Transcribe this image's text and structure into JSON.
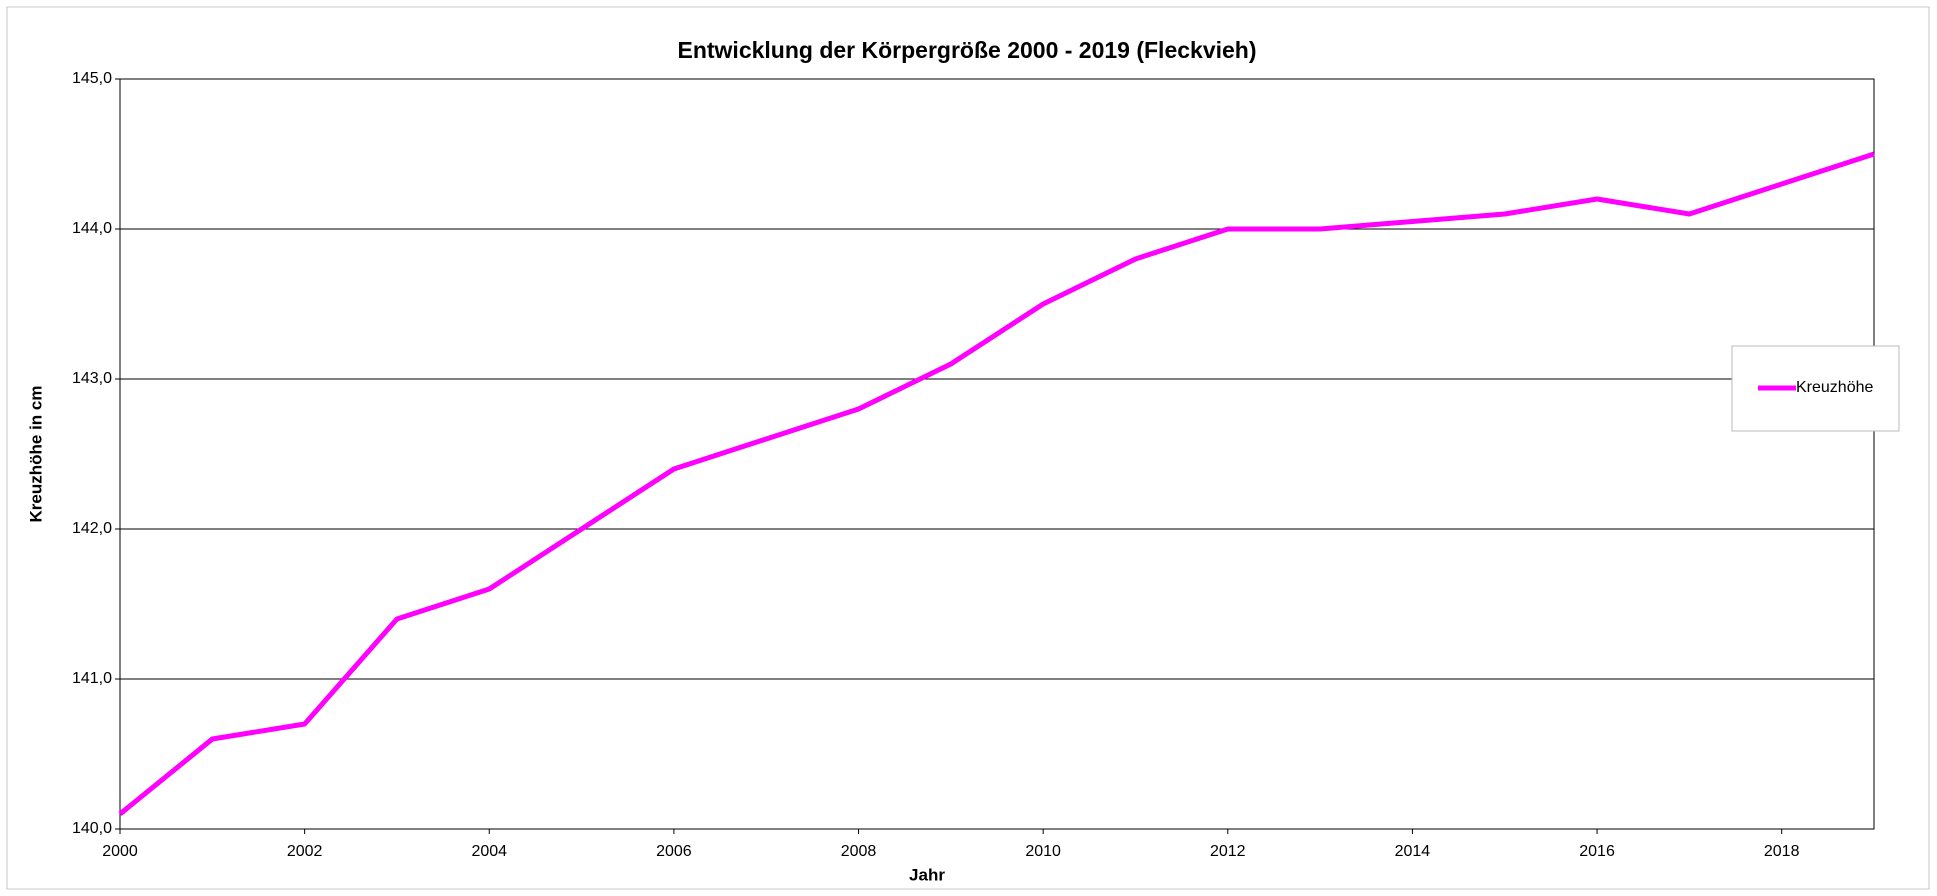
{
  "chart_data": {
    "type": "line",
    "title": "Entwicklung der Körpergröße 2000 - 2019  (Fleckvieh)",
    "x_label": "Jahr",
    "y_label": "Kreuzhöhe in cm",
    "x": [
      2000,
      2001,
      2002,
      2003,
      2004,
      2005,
      2006,
      2007,
      2008,
      2009,
      2010,
      2011,
      2012,
      2013,
      2014,
      2015,
      2016,
      2017,
      2018,
      2019
    ],
    "series": [
      {
        "name": "Kreuzhöhe",
        "color": "#ff00ff",
        "values": [
          140.1,
          140.6,
          140.7,
          141.4,
          141.6,
          142.0,
          142.4,
          142.6,
          142.8,
          143.1,
          143.5,
          143.8,
          144.0,
          144.0,
          144.05,
          144.1,
          144.2,
          144.1,
          144.3,
          144.5
        ]
      }
    ],
    "xlim": [
      2000,
      2019
    ],
    "xticks": [
      2000,
      2002,
      2004,
      2006,
      2008,
      2010,
      2012,
      2014,
      2016,
      2018
    ],
    "ylim": [
      140,
      145
    ],
    "yticks": [
      {
        "value": 140,
        "label": "140,0"
      },
      {
        "value": 141,
        "label": "141,0"
      },
      {
        "value": 142,
        "label": "142,0"
      },
      {
        "value": 143,
        "label": "143,0"
      },
      {
        "value": 144,
        "label": "144,0"
      },
      {
        "value": 145,
        "label": "145,0"
      }
    ],
    "grid": true,
    "legend": "right"
  }
}
